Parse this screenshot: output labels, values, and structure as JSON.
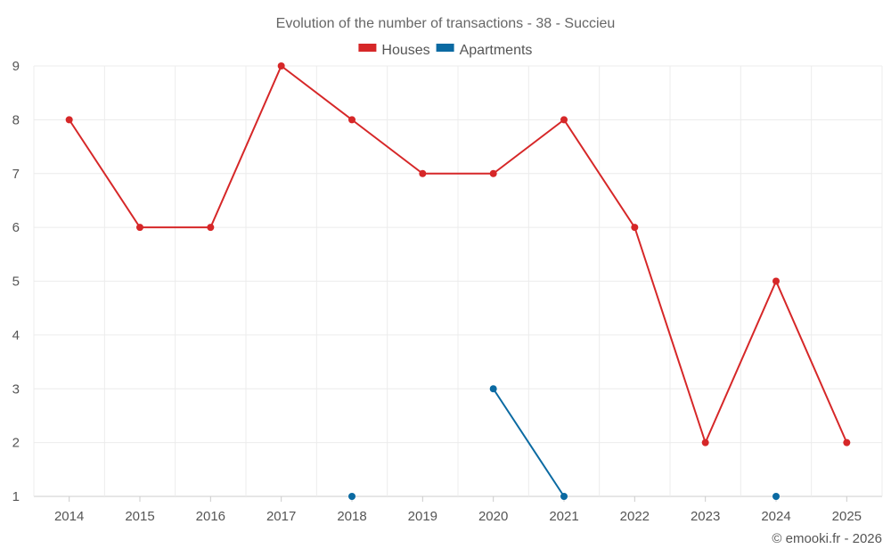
{
  "chart_data": {
    "type": "line",
    "title": "Evolution of the number of transactions - 38 - Succieu",
    "xlabel": "",
    "ylabel": "",
    "categories": [
      "2014",
      "2015",
      "2016",
      "2017",
      "2018",
      "2019",
      "2020",
      "2021",
      "2022",
      "2023",
      "2024",
      "2025"
    ],
    "ylim": [
      1,
      9
    ],
    "yticks": [
      1,
      2,
      3,
      4,
      5,
      6,
      7,
      8,
      9
    ],
    "grid": true,
    "legend_position": "top-center",
    "series": [
      {
        "name": "Houses",
        "color": "#d62728",
        "values": [
          8,
          6,
          6,
          9,
          8,
          7,
          7,
          8,
          6,
          2,
          5,
          2
        ]
      },
      {
        "name": "Apartments",
        "color": "#0b6aa2",
        "values": [
          null,
          null,
          null,
          null,
          1,
          null,
          3,
          1,
          null,
          null,
          1,
          null
        ]
      }
    ]
  },
  "footer": {
    "credit": "© emooki.fr - 2026"
  }
}
